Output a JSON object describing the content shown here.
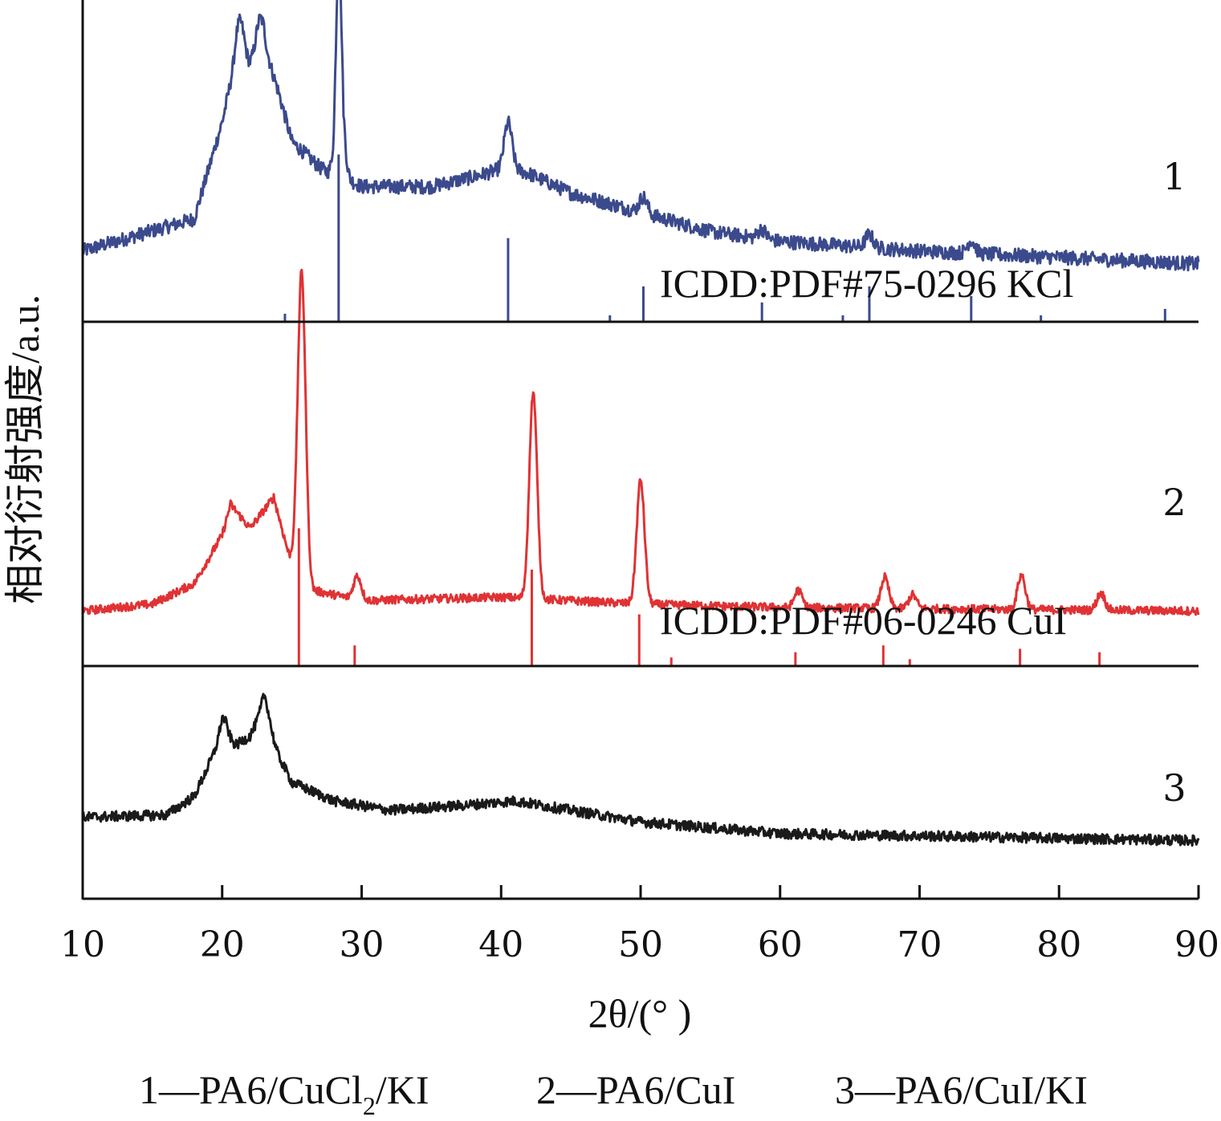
{
  "chart_data": {
    "type": "line",
    "xlabel": "2θ/(° )",
    "ylabel": "相对衍射强度/a.u.",
    "xlim": [
      10,
      90
    ],
    "x_ticks": [
      "10",
      "20",
      "30",
      "40",
      "50",
      "60",
      "70",
      "80",
      "90"
    ],
    "grid": false,
    "panels": [
      {
        "label": "1",
        "color": "#3b4a8c",
        "baseline": [
          [
            10,
            0.22
          ],
          [
            18,
            0.32
          ],
          [
            20,
            0.62
          ],
          [
            21,
            0.82
          ],
          [
            22,
            0.8
          ],
          [
            23,
            0.86
          ],
          [
            24,
            0.72
          ],
          [
            25,
            0.56
          ],
          [
            27,
            0.48
          ],
          [
            28,
            0.45
          ],
          [
            28.35,
            0.82
          ],
          [
            28.7,
            0.45
          ],
          [
            30,
            0.42
          ],
          [
            35,
            0.42
          ],
          [
            38,
            0.45
          ],
          [
            40.5,
            0.48
          ],
          [
            42,
            0.46
          ],
          [
            45,
            0.4
          ],
          [
            50,
            0.34
          ],
          [
            55,
            0.28
          ],
          [
            60,
            0.25
          ],
          [
            70,
            0.22
          ],
          [
            80,
            0.2
          ],
          [
            90,
            0.18
          ]
        ],
        "peaks": [
          [
            21.3,
            0.12
          ],
          [
            22.7,
            0.1
          ],
          [
            28.4,
            0.37
          ],
          [
            40.5,
            0.14
          ],
          [
            50.2,
            0.05
          ],
          [
            58.7,
            0.03
          ],
          [
            66.4,
            0.04
          ],
          [
            73.7,
            0.04
          ]
        ],
        "noise": 0.022,
        "reference_label": "ICDD:PDF#75-0296 KCl",
        "reference_lines": [
          {
            "x": 24.5,
            "h": 0.025
          },
          {
            "x": 28.35,
            "h": 0.52
          },
          {
            "x": 40.5,
            "h": 0.26
          },
          {
            "x": 47.8,
            "h": 0.02
          },
          {
            "x": 50.2,
            "h": 0.11
          },
          {
            "x": 58.7,
            "h": 0.06
          },
          {
            "x": 64.5,
            "h": 0.02
          },
          {
            "x": 66.4,
            "h": 0.11
          },
          {
            "x": 73.7,
            "h": 0.08
          },
          {
            "x": 78.7,
            "h": 0.02
          },
          {
            "x": 87.6,
            "h": 0.04
          }
        ]
      },
      {
        "label": "2",
        "color": "#e03234",
        "baseline": [
          [
            10,
            0.16
          ],
          [
            15,
            0.18
          ],
          [
            18,
            0.24
          ],
          [
            20,
            0.38
          ],
          [
            20.6,
            0.47
          ],
          [
            22,
            0.4
          ],
          [
            23.7,
            0.49
          ],
          [
            24.8,
            0.32
          ],
          [
            26.5,
            0.22
          ],
          [
            30,
            0.19
          ],
          [
            40,
            0.2
          ],
          [
            50,
            0.18
          ],
          [
            60,
            0.17
          ],
          [
            90,
            0.16
          ]
        ],
        "peaks": [
          [
            25.7,
            0.88
          ],
          [
            29.7,
            0.07
          ],
          [
            42.3,
            0.6
          ],
          [
            50.0,
            0.36
          ],
          [
            61.3,
            0.05
          ],
          [
            67.5,
            0.09
          ],
          [
            69.5,
            0.04
          ],
          [
            77.3,
            0.1
          ],
          [
            83.0,
            0.05
          ]
        ],
        "noise": 0.012,
        "reference_label": "ICDD:PDF#06-0246 CuI",
        "reference_lines": [
          {
            "x": 25.5,
            "h": 0.4
          },
          {
            "x": 29.5,
            "h": 0.06
          },
          {
            "x": 42.2,
            "h": 0.28
          },
          {
            "x": 49.9,
            "h": 0.15
          },
          {
            "x": 52.2,
            "h": 0.025
          },
          {
            "x": 61.1,
            "h": 0.04
          },
          {
            "x": 67.4,
            "h": 0.06
          },
          {
            "x": 69.3,
            "h": 0.02
          },
          {
            "x": 77.2,
            "h": 0.05
          },
          {
            "x": 82.9,
            "h": 0.04
          }
        ]
      },
      {
        "label": "3",
        "color": "#1a1a1a",
        "baseline": [
          [
            10,
            0.35
          ],
          [
            16,
            0.36
          ],
          [
            18,
            0.44
          ],
          [
            20,
            0.7
          ],
          [
            21,
            0.66
          ],
          [
            22,
            0.7
          ],
          [
            23,
            0.82
          ],
          [
            24,
            0.62
          ],
          [
            25,
            0.5
          ],
          [
            28,
            0.42
          ],
          [
            32,
            0.38
          ],
          [
            37,
            0.4
          ],
          [
            41,
            0.42
          ],
          [
            45,
            0.38
          ],
          [
            50,
            0.33
          ],
          [
            60,
            0.28
          ],
          [
            70,
            0.27
          ],
          [
            90,
            0.25
          ]
        ],
        "peaks": [
          [
            20.1,
            0.08
          ],
          [
            23.1,
            0.06
          ]
        ],
        "noise": 0.022,
        "reference_label": "",
        "reference_lines": []
      }
    ],
    "legend": {
      "items": [
        {
          "num": "1",
          "dash": "—",
          "name": "PA6/CuCl",
          "sub": "2",
          "tail": "/KI"
        },
        {
          "num": "2",
          "dash": "—",
          "name": "PA6/CuI",
          "sub": "",
          "tail": ""
        },
        {
          "num": "3",
          "dash": "—",
          "name": "PA6/CuI/KI",
          "sub": "",
          "tail": ""
        }
      ]
    }
  }
}
